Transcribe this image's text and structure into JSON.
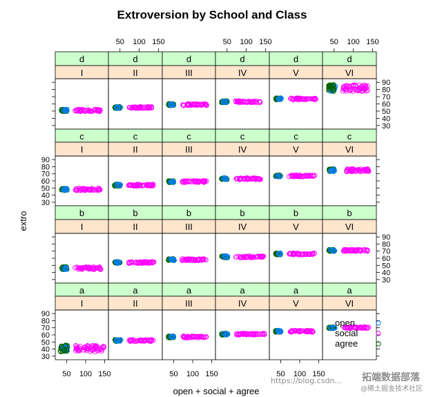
{
  "chart_data": {
    "type": "scatter",
    "title": "Extroversion by School and Class",
    "xlabel": "open + social + agree",
    "ylabel": "extro",
    "xlim": [
      20,
      160
    ],
    "ylim": [
      25,
      95
    ],
    "x_ticks": [
      50,
      100,
      150
    ],
    "y_ticks": [
      30,
      40,
      50,
      60,
      70,
      80,
      90
    ],
    "class_levels": [
      "d",
      "c",
      "b",
      "a"
    ],
    "school_levels": [
      "I",
      "II",
      "III",
      "IV",
      "V",
      "VI"
    ],
    "strip_colors": {
      "class": "#ccffcc",
      "school": "#ffe5cc"
    },
    "series": [
      {
        "name": "open",
        "color": "#0080ff"
      },
      {
        "name": "social",
        "color": "#ff00ff"
      },
      {
        "name": "agree",
        "color": "#006400"
      }
    ],
    "panels": [
      {
        "class": "d",
        "school": "I",
        "extro": 51,
        "open_x": [
          40,
          52
        ],
        "social_x": [
          72,
          138
        ],
        "agree_x": [
          36,
          50
        ],
        "spread": 1.5
      },
      {
        "class": "d",
        "school": "II",
        "extro": 55,
        "open_x": [
          40,
          52
        ],
        "social_x": [
          72,
          138
        ],
        "agree_x": [
          36,
          50
        ],
        "spread": 1.2
      },
      {
        "class": "d",
        "school": "III",
        "extro": 59,
        "open_x": [
          40,
          52
        ],
        "social_x": [
          72,
          138
        ],
        "agree_x": [
          36,
          50
        ],
        "spread": 1.2
      },
      {
        "class": "d",
        "school": "IV",
        "extro": 63,
        "open_x": [
          40,
          52
        ],
        "social_x": [
          72,
          138
        ],
        "agree_x": [
          36,
          50
        ],
        "spread": 1.2
      },
      {
        "class": "d",
        "school": "V",
        "extro": 67,
        "open_x": [
          40,
          52
        ],
        "social_x": [
          72,
          150
        ],
        "agree_x": [
          36,
          50
        ],
        "spread": 1.2
      },
      {
        "class": "d",
        "school": "VI",
        "extro": 82,
        "open_x": [
          40,
          55
        ],
        "social_x": [
          72,
          140
        ],
        "agree_x": [
          36,
          50
        ],
        "spread": 4.5
      },
      {
        "class": "c",
        "school": "I",
        "extro": 48,
        "open_x": [
          40,
          52
        ],
        "social_x": [
          72,
          138
        ],
        "agree_x": [
          36,
          50
        ],
        "spread": 1.5
      },
      {
        "class": "c",
        "school": "II",
        "extro": 54,
        "open_x": [
          40,
          52
        ],
        "social_x": [
          72,
          138
        ],
        "agree_x": [
          36,
          50
        ],
        "spread": 1.2
      },
      {
        "class": "c",
        "school": "III",
        "extro": 59,
        "open_x": [
          40,
          52
        ],
        "social_x": [
          72,
          138
        ],
        "agree_x": [
          36,
          50
        ],
        "spread": 1.2
      },
      {
        "class": "c",
        "school": "IV",
        "extro": 63,
        "open_x": [
          40,
          52
        ],
        "social_x": [
          72,
          138
        ],
        "agree_x": [
          36,
          50
        ],
        "spread": 1.2
      },
      {
        "class": "c",
        "school": "V",
        "extro": 67,
        "open_x": [
          40,
          52
        ],
        "social_x": [
          72,
          140
        ],
        "agree_x": [
          36,
          50
        ],
        "spread": 1.2
      },
      {
        "class": "c",
        "school": "VI",
        "extro": 75,
        "open_x": [
          40,
          52
        ],
        "social_x": [
          72,
          140
        ],
        "agree_x": [
          36,
          50
        ],
        "spread": 2
      },
      {
        "class": "b",
        "school": "I",
        "extro": 46,
        "open_x": [
          40,
          52
        ],
        "social_x": [
          72,
          140
        ],
        "agree_x": [
          36,
          50
        ],
        "spread": 2
      },
      {
        "class": "b",
        "school": "II",
        "extro": 54,
        "open_x": [
          40,
          52
        ],
        "social_x": [
          72,
          138
        ],
        "agree_x": [
          36,
          50
        ],
        "spread": 1.2
      },
      {
        "class": "b",
        "school": "III",
        "extro": 58,
        "open_x": [
          40,
          52
        ],
        "social_x": [
          72,
          138
        ],
        "agree_x": [
          36,
          50
        ],
        "spread": 1.2
      },
      {
        "class": "b",
        "school": "IV",
        "extro": 62,
        "open_x": [
          40,
          52
        ],
        "social_x": [
          72,
          145
        ],
        "agree_x": [
          36,
          50
        ],
        "spread": 1.2
      },
      {
        "class": "b",
        "school": "V",
        "extro": 66,
        "open_x": [
          40,
          52
        ],
        "social_x": [
          72,
          140
        ],
        "agree_x": [
          36,
          50
        ],
        "spread": 1.2
      },
      {
        "class": "b",
        "school": "VI",
        "extro": 71,
        "open_x": [
          40,
          52
        ],
        "social_x": [
          72,
          140
        ],
        "agree_x": [
          36,
          50
        ],
        "spread": 1.2
      },
      {
        "class": "a",
        "school": "I",
        "extro": 41,
        "open_x": [
          40,
          55
        ],
        "social_x": [
          72,
          148
        ],
        "agree_x": [
          32,
          52
        ],
        "spread": 4
      },
      {
        "class": "a",
        "school": "II",
        "extro": 52,
        "open_x": [
          40,
          52
        ],
        "social_x": [
          72,
          138
        ],
        "agree_x": [
          36,
          50
        ],
        "spread": 1.2
      },
      {
        "class": "a",
        "school": "III",
        "extro": 57,
        "open_x": [
          40,
          52
        ],
        "social_x": [
          72,
          138
        ],
        "agree_x": [
          36,
          50
        ],
        "spread": 1.2
      },
      {
        "class": "a",
        "school": "IV",
        "extro": 61,
        "open_x": [
          40,
          52
        ],
        "social_x": [
          72,
          148
        ],
        "agree_x": [
          36,
          50
        ],
        "spread": 1.2
      },
      {
        "class": "a",
        "school": "V",
        "extro": 65,
        "open_x": [
          40,
          52
        ],
        "social_x": [
          72,
          138
        ],
        "agree_x": [
          36,
          50
        ],
        "spread": 1.2
      },
      {
        "class": "a",
        "school": "VI",
        "extro": 70,
        "open_x": [
          40,
          52
        ],
        "social_x": [
          72,
          140
        ],
        "agree_x": [
          36,
          50
        ],
        "spread": 1.2
      }
    ]
  },
  "watermark": {
    "url": "https://blog.csdn...",
    "brand": "拓端数据部落",
    "community": "@稀土掘金技术社区"
  }
}
